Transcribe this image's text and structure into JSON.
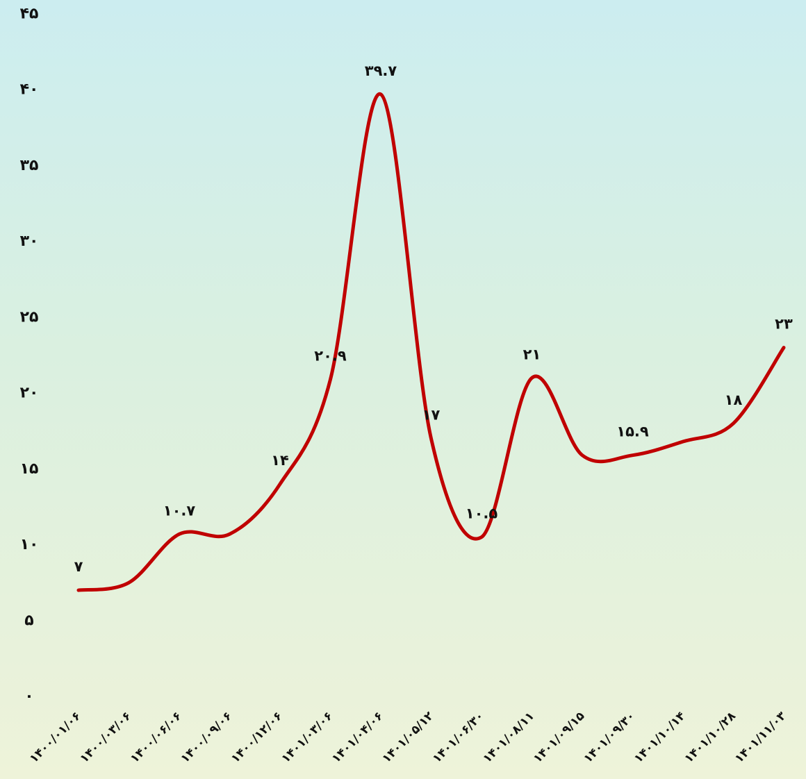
{
  "chart_data": {
    "type": "line",
    "title": "",
    "xlabel": "",
    "ylabel": "",
    "categories": [
      "۱۴۰۰/۰۱/۰۶",
      "۱۴۰۰/۰۳/۰۶",
      "۱۴۰۰/۰۶/۰۶",
      "۱۴۰۰/۰۹/۰۶",
      "۱۴۰۰/۱۲/۰۶",
      "۱۴۰۱/۰۳/۰۶",
      "۱۴۰۱/۰۴/۰۶",
      "۱۴۰۱/۰۵/۱۲",
      "۱۴۰۱/۰۶/۳۰",
      "۱۴۰۱/۰۸/۱۱",
      "۱۴۰۱/۰۹/۱۵",
      "۱۴۰۱/۰۹/۳۰",
      "۱۴۰۱/۱۰/۱۴",
      "۱۴۰۱/۱۰/۲۸",
      "۱۴۰۱/۱۱/۰۳"
    ],
    "series": [
      {
        "values": [
          7,
          7.5,
          10.7,
          10.7,
          14,
          20.9,
          39.7,
          17,
          10.5,
          21,
          15.9,
          15.9,
          16.8,
          18,
          23
        ],
        "color": "#c00000"
      }
    ],
    "data_labels": [
      {
        "index": 0,
        "text": "۷"
      },
      {
        "index": 2,
        "text": "۱۰.۷"
      },
      {
        "index": 4,
        "text": "۱۴"
      },
      {
        "index": 5,
        "text": "۲۰.۹"
      },
      {
        "index": 6,
        "text": "۳۹.۷"
      },
      {
        "index": 7,
        "text": "۱۷"
      },
      {
        "index": 8,
        "text": "۱۰.۵"
      },
      {
        "index": 9,
        "text": "۲۱"
      },
      {
        "index": 11,
        "text": "۱۵.۹"
      },
      {
        "index": 13,
        "text": "۱۸"
      },
      {
        "index": 14,
        "text": "۲۳"
      }
    ],
    "ylim": [
      0,
      45
    ],
    "y_ticks": [
      0,
      5,
      10,
      15,
      20,
      25,
      30,
      35,
      40,
      45
    ],
    "y_tick_labels": [
      "۰",
      "۵",
      "۱۰",
      "۱۵",
      "۲۰",
      "۲۵",
      "۳۰",
      "۳۵",
      "۴۰",
      "۴۵"
    ],
    "grid": false,
    "legend": "none"
  }
}
